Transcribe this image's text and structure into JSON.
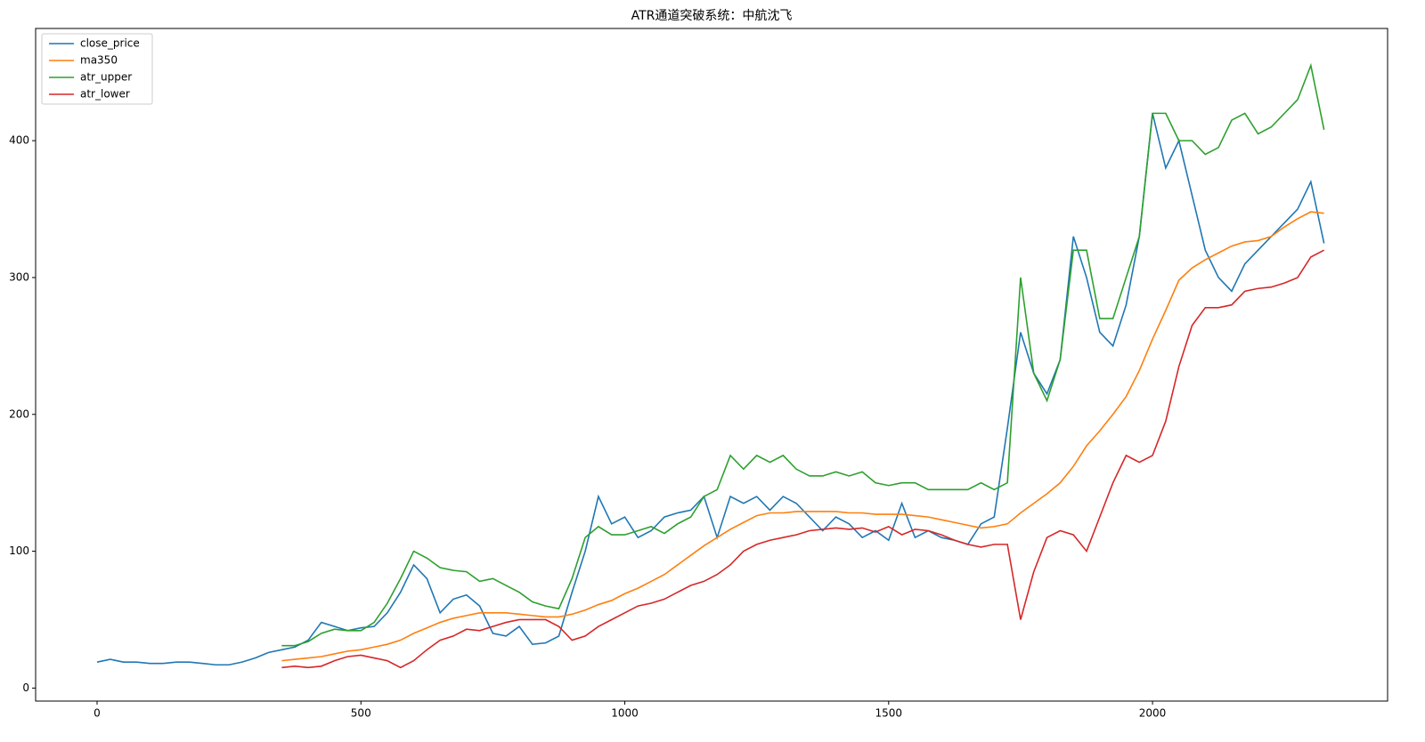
{
  "chart_data": {
    "type": "line",
    "title": "ATR通道突破系统：中航沈飞",
    "x": [
      0,
      25,
      50,
      75,
      100,
      125,
      150,
      175,
      200,
      225,
      250,
      275,
      300,
      325,
      350,
      375,
      400,
      425,
      450,
      475,
      500,
      525,
      550,
      575,
      600,
      625,
      650,
      675,
      700,
      725,
      750,
      775,
      800,
      825,
      850,
      875,
      900,
      925,
      950,
      975,
      1000,
      1025,
      1050,
      1075,
      1100,
      1125,
      1150,
      1175,
      1200,
      1225,
      1250,
      1275,
      1300,
      1325,
      1350,
      1375,
      1400,
      1425,
      1450,
      1475,
      1500,
      1525,
      1550,
      1575,
      1600,
      1625,
      1650,
      1675,
      1700,
      1725,
      1750,
      1775,
      1800,
      1825,
      1850,
      1875,
      1900,
      1925,
      1950,
      1975,
      2000,
      2025,
      2050,
      2075,
      2100,
      2125,
      2150,
      2175,
      2200,
      2225,
      2250,
      2275,
      2300,
      2325
    ],
    "series": [
      {
        "name": "close_price",
        "color": "#1f77b4",
        "values": [
          19,
          21,
          19,
          19,
          18,
          18,
          19,
          19,
          18,
          17,
          17,
          19,
          22,
          26,
          28,
          30,
          35,
          48,
          45,
          42,
          44,
          45,
          55,
          70,
          90,
          80,
          55,
          65,
          68,
          60,
          40,
          38,
          45,
          32,
          33,
          38,
          70,
          100,
          140,
          120,
          125,
          110,
          115,
          125,
          128,
          130,
          140,
          110,
          140,
          135,
          140,
          130,
          140,
          135,
          125,
          115,
          125,
          120,
          110,
          115,
          108,
          135,
          110,
          115,
          110,
          108,
          105,
          120,
          125,
          190,
          260,
          230,
          215,
          240,
          330,
          300,
          260,
          250,
          280,
          330,
          420,
          380,
          400,
          360,
          320,
          300,
          290,
          310,
          320,
          330,
          340,
          350,
          370,
          325
        ]
      },
      {
        "name": "ma350",
        "color": "#ff7f0e",
        "values": [
          null,
          null,
          null,
          null,
          null,
          null,
          null,
          null,
          null,
          null,
          null,
          null,
          null,
          null,
          20,
          21,
          22,
          23,
          25,
          27,
          28,
          30,
          32,
          35,
          40,
          44,
          48,
          51,
          53,
          55,
          55,
          55,
          54,
          53,
          52,
          52,
          54,
          57,
          61,
          64,
          69,
          73,
          78,
          83,
          90,
          97,
          104,
          110,
          116,
          121,
          126,
          128,
          128,
          129,
          129,
          129,
          129,
          128,
          128,
          127,
          127,
          127,
          126,
          125,
          123,
          121,
          119,
          117,
          118,
          120,
          128,
          135,
          142,
          150,
          162,
          177,
          188,
          200,
          213,
          232,
          255,
          276,
          298,
          307,
          313,
          318,
          323,
          326,
          327,
          330,
          337,
          343,
          348,
          347
        ]
      },
      {
        "name": "atr_upper",
        "color": "#2ca02c",
        "values": [
          null,
          null,
          null,
          null,
          null,
          null,
          null,
          null,
          null,
          null,
          null,
          null,
          null,
          null,
          31,
          31,
          34,
          40,
          43,
          42,
          42,
          48,
          62,
          80,
          100,
          95,
          88,
          86,
          85,
          78,
          80,
          75,
          70,
          63,
          60,
          58,
          80,
          110,
          118,
          112,
          112,
          115,
          118,
          113,
          120,
          125,
          140,
          145,
          170,
          160,
          170,
          165,
          170,
          160,
          155,
          155,
          158,
          155,
          158,
          150,
          148,
          150,
          150,
          145,
          145,
          145,
          145,
          150,
          145,
          150,
          300,
          230,
          210,
          240,
          320,
          320,
          270,
          270,
          300,
          330,
          420,
          420,
          400,
          400,
          390,
          395,
          415,
          420,
          405,
          410,
          420,
          430,
          455,
          408
        ]
      },
      {
        "name": "atr_lower",
        "color": "#d62728",
        "values": [
          null,
          null,
          null,
          null,
          null,
          null,
          null,
          null,
          null,
          null,
          null,
          null,
          null,
          null,
          15,
          16,
          15,
          16,
          20,
          23,
          24,
          22,
          20,
          15,
          20,
          28,
          35,
          38,
          43,
          42,
          45,
          48,
          50,
          50,
          50,
          45,
          35,
          38,
          45,
          50,
          55,
          60,
          62,
          65,
          70,
          75,
          78,
          83,
          90,
          100,
          105,
          108,
          110,
          112,
          115,
          116,
          117,
          116,
          117,
          114,
          118,
          112,
          116,
          115,
          112,
          108,
          105,
          103,
          105,
          105,
          50,
          85,
          110,
          115,
          112,
          100,
          125,
          150,
          170,
          165,
          170,
          195,
          235,
          265,
          278,
          278,
          280,
          290,
          292,
          293,
          296,
          300,
          315,
          320
        ]
      }
    ],
    "xlim": [
      -116.45,
      2445.45
    ],
    "ylim": [
      -9.5,
      482
    ],
    "xticks": [
      0,
      500,
      1000,
      1500,
      2000
    ],
    "yticks": [
      0,
      100,
      200,
      300,
      400
    ],
    "grid": false,
    "legend": "upper-left"
  }
}
